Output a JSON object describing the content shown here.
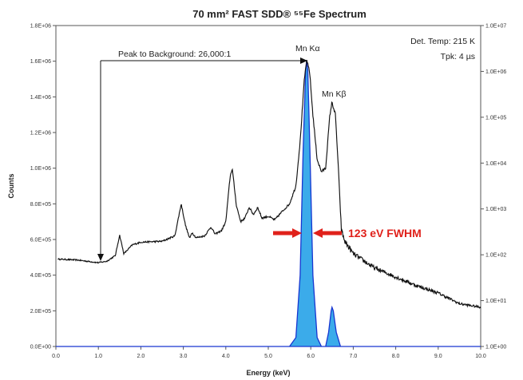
{
  "chart_data": {
    "type": "line",
    "title": "70 mm² FAST SDD® ⁵⁵Fe Spectrum",
    "xlabel": "Energy (keV)",
    "ylabel": "Counts",
    "xlim": [
      0,
      10
    ],
    "ylim_left": [
      0,
      1800000
    ],
    "ylim_right": [
      1,
      10000000
    ],
    "right_axis_scale": "log",
    "x_ticks": [
      "0.0",
      "1.0",
      "2.0",
      "3.0",
      "4.0",
      "5.0",
      "6.0",
      "7.0",
      "8.0",
      "9.0",
      "10.0"
    ],
    "y_ticks_left": [
      "0.0E+00",
      "2.0E+05",
      "4.0E+05",
      "6.0E+05",
      "8.0E+05",
      "1.0E+06",
      "1.2E+06",
      "1.4E+06",
      "1.6E+06",
      "1.8E+06"
    ],
    "y_ticks_right": [
      "1.0E+00",
      "1.0E+01",
      "1.0E+02",
      "1.0E+03",
      "1.0E+04",
      "1.0E+05",
      "1.0E+06",
      "1.0E+07"
    ],
    "grid": false,
    "series": [
      {
        "axis": "right-log",
        "color": "#111111",
        "points": [
          [
            0.05,
            490000
          ],
          [
            0.5,
            485000
          ],
          [
            1.0,
            470000
          ],
          [
            1.2,
            478000
          ],
          [
            1.4,
            510000
          ],
          [
            1.5,
            625000
          ],
          [
            1.6,
            520000
          ],
          [
            1.8,
            570000
          ],
          [
            2.0,
            585000
          ],
          [
            2.5,
            590000
          ],
          [
            2.8,
            620000
          ],
          [
            2.95,
            800000
          ],
          [
            3.05,
            680000
          ],
          [
            3.15,
            605000
          ],
          [
            3.2,
            640000
          ],
          [
            3.3,
            610000
          ],
          [
            3.5,
            620000
          ],
          [
            3.65,
            670000
          ],
          [
            3.75,
            630000
          ],
          [
            3.9,
            650000
          ],
          [
            4.0,
            700000
          ],
          [
            4.1,
            950000
          ],
          [
            4.15,
            1000000
          ],
          [
            4.25,
            790000
          ],
          [
            4.35,
            700000
          ],
          [
            4.45,
            720000
          ],
          [
            4.55,
            780000
          ],
          [
            4.65,
            740000
          ],
          [
            4.75,
            780000
          ],
          [
            4.85,
            720000
          ],
          [
            5.0,
            730000
          ],
          [
            5.15,
            710000
          ],
          [
            5.3,
            750000
          ],
          [
            5.5,
            800000
          ],
          [
            5.65,
            900000
          ],
          [
            5.75,
            1150000
          ],
          [
            5.85,
            1500000
          ],
          [
            5.9,
            1600000
          ],
          [
            5.97,
            1550000
          ],
          [
            6.05,
            1300000
          ],
          [
            6.15,
            1050000
          ],
          [
            6.25,
            980000
          ],
          [
            6.35,
            1000000
          ],
          [
            6.45,
            1300000
          ],
          [
            6.5,
            1370000
          ],
          [
            6.58,
            1300000
          ],
          [
            6.65,
            1000000
          ],
          [
            6.72,
            650000
          ],
          [
            6.8,
            590000
          ],
          [
            7.0,
            520000
          ],
          [
            7.5,
            440000
          ],
          [
            8.0,
            390000
          ],
          [
            8.5,
            340000
          ],
          [
            9.0,
            300000
          ],
          [
            9.5,
            240000
          ],
          [
            10.0,
            220000
          ]
        ]
      },
      {
        "axis": "left-linear",
        "color": "#2b9de3",
        "fill": true,
        "points": [
          [
            0.0,
            0
          ],
          [
            5.5,
            0
          ],
          [
            5.65,
            50000
          ],
          [
            5.75,
            400000
          ],
          [
            5.82,
            1100000
          ],
          [
            5.88,
            1550000
          ],
          [
            5.9,
            1600000
          ],
          [
            5.93,
            1550000
          ],
          [
            5.98,
            1100000
          ],
          [
            6.05,
            400000
          ],
          [
            6.15,
            50000
          ],
          [
            6.25,
            0
          ],
          [
            6.35,
            0
          ],
          [
            6.42,
            80000
          ],
          [
            6.48,
            200000
          ],
          [
            6.5,
            220000
          ],
          [
            6.53,
            200000
          ],
          [
            6.6,
            80000
          ],
          [
            6.7,
            0
          ],
          [
            10.0,
            0
          ]
        ]
      }
    ],
    "annotations": {
      "peak_background": "Peak to Background: 26,000:1",
      "mn_ka": "Mn Kα",
      "mn_kb": "Mn Kβ",
      "det_temp": "Det. Temp: 215 K",
      "tpk": "Tpk: 4 µs",
      "fwhm": "123 eV FWHM"
    }
  }
}
